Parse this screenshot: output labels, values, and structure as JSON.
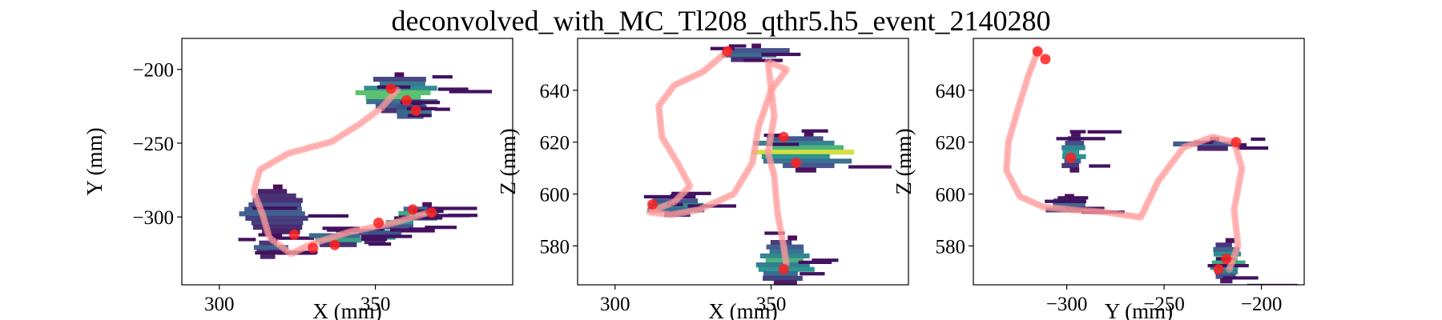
{
  "title": "deconvolved_with_MC_Tl208_qthr5.h5_event_2140280",
  "colors": {
    "track": "#ff9a9a",
    "blob": "#ff2020",
    "viridis_low": "#440154",
    "viridis_mid": "#21918c",
    "viridis_high": "#fde725"
  },
  "chart_data": [
    {
      "type": "heatmap",
      "xlabel": "X (mm)",
      "ylabel": "Y (mm)",
      "xlim": [
        288,
        394
      ],
      "ylim": [
        -346,
        -179
      ],
      "xticks": [
        300,
        350
      ],
      "yticks": [
        -200,
        -250,
        -300
      ],
      "xtick_labels": [
        "300",
        "350"
      ],
      "ytick_labels": [
        "−200",
        "−250",
        "−300"
      ],
      "hits": [
        {
          "x": 357,
          "y": -215,
          "rx": 11,
          "ry": 13,
          "level": 0.85
        },
        {
          "x": 362,
          "y": -227,
          "rx": 5,
          "ry": 6,
          "level": 0.55
        },
        {
          "x": 318,
          "y": -295,
          "rx": 9,
          "ry": 17,
          "level": 0.35
        },
        {
          "x": 316,
          "y": -320,
          "rx": 5,
          "ry": 7,
          "level": 0.3
        },
        {
          "x": 338,
          "y": -313,
          "rx": 10,
          "ry": 5,
          "level": 0.65
        },
        {
          "x": 351,
          "y": -311,
          "rx": 7,
          "ry": 5,
          "level": 0.55
        },
        {
          "x": 365,
          "y": -296,
          "rx": 6,
          "ry": 6,
          "level": 0.9
        },
        {
          "x": 358,
          "y": -303,
          "rx": 5,
          "ry": 4,
          "level": 0.6
        }
      ],
      "track": [
        [
          357,
          -214
        ],
        [
          352,
          -226
        ],
        [
          345,
          -237
        ],
        [
          336,
          -249
        ],
        [
          322,
          -257
        ],
        [
          313,
          -268
        ],
        [
          311,
          -283
        ],
        [
          314,
          -299
        ],
        [
          316,
          -314
        ],
        [
          323,
          -325
        ],
        [
          330,
          -318
        ],
        [
          342,
          -310
        ],
        [
          356,
          -304
        ],
        [
          367,
          -297
        ]
      ],
      "blobs": [
        [
          355,
          -213
        ],
        [
          360,
          -221
        ],
        [
          363,
          -228
        ],
        [
          330,
          -321
        ],
        [
          337,
          -319
        ],
        [
          324,
          -312
        ],
        [
          351,
          -304
        ],
        [
          362,
          -295
        ],
        [
          368,
          -297
        ]
      ]
    },
    {
      "type": "heatmap",
      "xlabel": "X (mm)",
      "ylabel": "Z (mm)",
      "xlim": [
        288,
        394
      ],
      "ylim": [
        565,
        660
      ],
      "xticks": [
        300,
        350
      ],
      "yticks": [
        640,
        620,
        600,
        580
      ],
      "xtick_labels": [
        "300",
        "350"
      ],
      "ytick_labels": [
        "640",
        "620",
        "600",
        "580"
      ],
      "hits": [
        {
          "x": 360,
          "y": 617,
          "rx": 14,
          "ry": 7,
          "level": 0.9
        },
        {
          "x": 354,
          "y": 575,
          "rx": 8,
          "ry": 9,
          "level": 0.75
        },
        {
          "x": 319,
          "y": 596,
          "rx": 8,
          "ry": 4,
          "level": 0.5
        },
        {
          "x": 344,
          "y": 655,
          "rx": 10,
          "ry": 3,
          "level": 0.4
        }
      ],
      "track": [
        [
          336,
          655
        ],
        [
          328,
          647
        ],
        [
          319,
          642
        ],
        [
          314,
          634
        ],
        [
          315,
          622
        ],
        [
          320,
          612
        ],
        [
          324,
          603
        ],
        [
          319,
          597
        ],
        [
          311,
          593
        ],
        [
          318,
          592
        ],
        [
          327,
          594
        ],
        [
          338,
          600
        ],
        [
          344,
          612
        ],
        [
          346,
          626
        ],
        [
          350,
          640
        ],
        [
          355,
          648
        ],
        [
          349,
          651
        ],
        [
          351,
          630
        ],
        [
          349,
          616
        ],
        [
          351,
          607
        ],
        [
          352,
          593
        ],
        [
          354,
          580
        ],
        [
          355,
          572
        ]
      ],
      "blobs": [
        [
          336,
          655
        ],
        [
          312,
          596
        ],
        [
          354,
          622
        ],
        [
          358,
          612
        ],
        [
          354,
          571
        ]
      ]
    },
    {
      "type": "heatmap",
      "xlabel": "Y (mm)",
      "ylabel": "Z (mm)",
      "xlim": [
        -348,
        -178
      ],
      "ylim": [
        565,
        660
      ],
      "xticks": [
        -300,
        -250,
        -200
      ],
      "yticks": [
        640,
        620,
        600,
        580
      ],
      "xtick_labels": [
        "−300",
        "−250",
        "−200"
      ],
      "ytick_labels": [
        "640",
        "620",
        "600",
        "580"
      ],
      "hits": [
        {
          "x": -297,
          "y": 617,
          "rx": 6,
          "ry": 7,
          "level": 0.7
        },
        {
          "x": -218,
          "y": 575,
          "rx": 8,
          "ry": 8,
          "level": 0.8
        },
        {
          "x": -300,
          "y": 597,
          "rx": 12,
          "ry": 3,
          "level": 0.5
        },
        {
          "x": -228,
          "y": 620,
          "rx": 16,
          "ry": 2,
          "level": 0.35
        }
      ],
      "track": [
        [
          -315,
          655
        ],
        [
          -320,
          645
        ],
        [
          -325,
          633
        ],
        [
          -330,
          620
        ],
        [
          -331,
          609
        ],
        [
          -324,
          599
        ],
        [
          -312,
          595
        ],
        [
          -298,
          594
        ],
        [
          -280,
          593
        ],
        [
          -262,
          591
        ],
        [
          -253,
          605
        ],
        [
          -240,
          618
        ],
        [
          -225,
          622
        ],
        [
          -214,
          620
        ],
        [
          -210,
          610
        ],
        [
          -214,
          594
        ],
        [
          -212,
          580
        ],
        [
          -217,
          570
        ]
      ],
      "blobs": [
        [
          -315,
          655
        ],
        [
          -311,
          652
        ],
        [
          -298,
          614
        ],
        [
          -213,
          620
        ],
        [
          -218,
          575
        ],
        [
          -222,
          571
        ]
      ]
    }
  ]
}
